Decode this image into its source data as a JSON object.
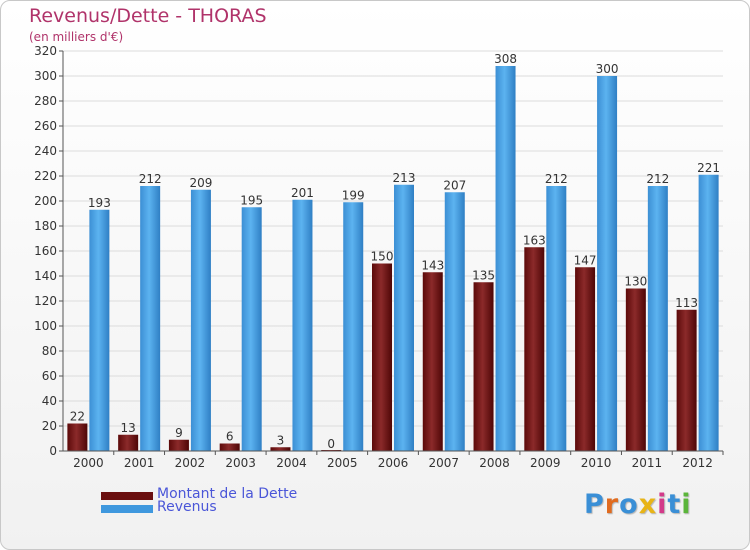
{
  "header": {
    "title": "Revenus/Dette - THORAS",
    "subtitle": "(en milliers d'€)"
  },
  "colors": {
    "dette": "#7a1414",
    "revenus": "#4ea6e6",
    "title": "#b0336a",
    "legend_text": "#4a56d8"
  },
  "legend": {
    "position": "bottom-left",
    "items": [
      {
        "label": "Montant de la Dette",
        "color": "#6a0f0f"
      },
      {
        "label": "Revenus",
        "color": "#3f98de"
      }
    ]
  },
  "logo": {
    "text": "Proxiti",
    "icon": "proxiti-logo",
    "letter_colors": [
      "#3a8fd6",
      "#e06b1f",
      "#3a8fd6",
      "#e8b417",
      "#d33a8a",
      "#3a8fd6",
      "#5bb53a"
    ]
  },
  "chart_data": {
    "type": "bar",
    "title": "Revenus/Dette - THORAS",
    "subtitle": "(en milliers d'€)",
    "categories": [
      "2000",
      "2001",
      "2002",
      "2003",
      "2004",
      "2005",
      "2006",
      "2007",
      "2008",
      "2009",
      "2010",
      "2011",
      "2012"
    ],
    "series": [
      {
        "name": "Montant de la Dette",
        "values": [
          22,
          13,
          9,
          6,
          3,
          0,
          150,
          143,
          135,
          163,
          147,
          130,
          113
        ]
      },
      {
        "name": "Revenus",
        "values": [
          193,
          212,
          209,
          195,
          201,
          199,
          213,
          207,
          308,
          212,
          300,
          212,
          221
        ]
      }
    ],
    "ylim": [
      0,
      320
    ],
    "yticks": [
      0,
      20,
      40,
      60,
      80,
      100,
      120,
      140,
      160,
      180,
      200,
      220,
      240,
      260,
      280,
      300,
      320
    ],
    "grid": true,
    "data_labels": true
  }
}
